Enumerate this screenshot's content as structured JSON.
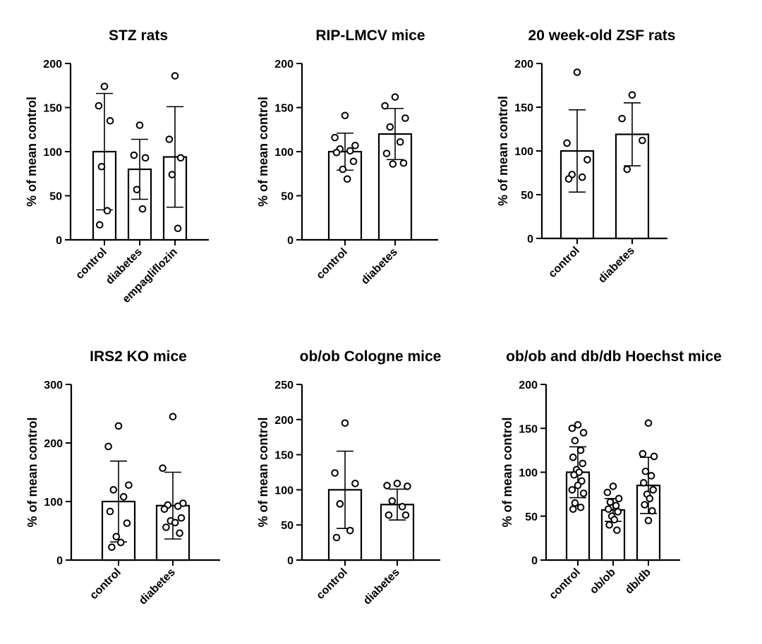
{
  "chart_data": [
    {
      "type": "bar",
      "title": "STZ rats",
      "ylabel": "% of mean control",
      "ylim": [
        0,
        200
      ],
      "yticks": [
        "0",
        "50",
        "100",
        "150",
        "200"
      ],
      "categories": [
        "control",
        "diabetes",
        "empagliflozin"
      ],
      "values": [
        100,
        80,
        94
      ],
      "error": [
        66,
        34,
        57
      ],
      "points": [
        [
          174,
          152,
          135,
          83,
          33,
          17
        ],
        [
          130,
          96,
          93,
          57,
          35
        ],
        [
          186,
          114,
          93,
          74,
          13
        ]
      ]
    },
    {
      "type": "bar",
      "title": "RIP-LMCV mice",
      "ylabel": "% of mean control",
      "ylim": [
        0,
        200
      ],
      "yticks": [
        "0",
        "50",
        "100",
        "150",
        "200"
      ],
      "categories": [
        "control",
        "diabetes"
      ],
      "values": [
        100,
        120
      ],
      "error": [
        21,
        29
      ],
      "points": [
        [
          141,
          116,
          107,
          103,
          101,
          99,
          89,
          80,
          69
        ],
        [
          162,
          152,
          138,
          128,
          111,
          98,
          86,
          87
        ]
      ]
    },
    {
      "type": "bar",
      "title": "20 week-old ZSF rats",
      "ylabel": "% of mean control",
      "ylim": [
        0,
        200
      ],
      "yticks": [
        "0",
        "50",
        "100",
        "150",
        "200"
      ],
      "categories": [
        "control",
        "diabetes"
      ],
      "values": [
        100,
        119
      ],
      "error": [
        47,
        36
      ],
      "points": [
        [
          190,
          109,
          90,
          73,
          70,
          68
        ],
        [
          164,
          137,
          112,
          79
        ]
      ]
    },
    {
      "type": "bar",
      "title": "IRS2 KO  mice",
      "ylabel": "% of mean control",
      "ylim": [
        0,
        300
      ],
      "yticks": [
        "0",
        "100",
        "200",
        "300"
      ],
      "categories": [
        "control",
        "diabetes"
      ],
      "values": [
        100,
        93
      ],
      "error": [
        69,
        57
      ],
      "points": [
        [
          229,
          194,
          128,
          120,
          108,
          83,
          63,
          40,
          30,
          22
        ],
        [
          245,
          157,
          97,
          94,
          92,
          87,
          72,
          67,
          64,
          56,
          46
        ]
      ]
    },
    {
      "type": "bar",
      "title": "ob/ob Cologne mice",
      "ylabel": "% of mean control",
      "ylim": [
        0,
        250
      ],
      "yticks": [
        "0",
        "50",
        "100",
        "150",
        "200",
        "250"
      ],
      "categories": [
        "control",
        "diabetes"
      ],
      "values": [
        100,
        79
      ],
      "error": [
        55,
        22
      ],
      "points": [
        [
          195,
          124,
          109,
          80,
          42,
          32
        ],
        [
          106,
          105,
          109,
          84,
          76,
          64,
          64
        ]
      ]
    },
    {
      "type": "bar",
      "title": "ob/ob and db/db Hoechst mice",
      "ylabel": "% of mean control",
      "ylim": [
        0,
        200
      ],
      "yticks": [
        "0",
        "50",
        "100",
        "150",
        "200"
      ],
      "categories": [
        "control",
        "ob/ob",
        "db/db"
      ],
      "values": [
        100,
        57,
        85
      ],
      "error": [
        29,
        13,
        32
      ],
      "points": [
        [
          154,
          150,
          145,
          136,
          125,
          117,
          110,
          103,
          100,
          97,
          90,
          85,
          80,
          76,
          65,
          60,
          58
        ],
        [
          84,
          77,
          70,
          66,
          62,
          58,
          55,
          50,
          46,
          40,
          34
        ],
        [
          156,
          121,
          118,
          101,
          96,
          88,
          80,
          75,
          70,
          63,
          56,
          45
        ]
      ]
    }
  ]
}
